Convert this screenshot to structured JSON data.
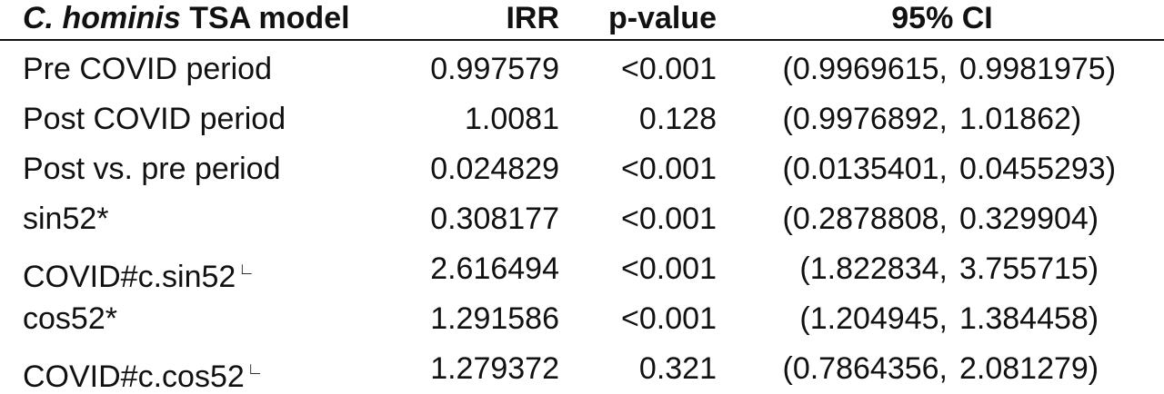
{
  "table": {
    "header": {
      "model_italic": "C. hominis",
      "model_rest": "TSA model",
      "irr": "IRR",
      "p": "p-value",
      "ci": "95% CI"
    },
    "rows": [
      {
        "label": "Pre COVID period",
        "irr": "0.997579",
        "p": "<0.001",
        "ci": [
          "(0.9969615,",
          "0.9981975)"
        ]
      },
      {
        "label": "Post COVID period",
        "irr": "1.0081",
        "p": "0.128",
        "ci": [
          "(0.9976892,",
          "1.01862)"
        ]
      },
      {
        "label": "Post vs. pre period",
        "irr": "0.024829",
        "p": "<0.001",
        "ci": [
          "(0.0135401,",
          "0.0455293)"
        ]
      },
      {
        "label": "sin52*",
        "irr": "0.308177",
        "p": "<0.001",
        "ci": [
          "(0.2878808,",
          "0.329904)"
        ]
      },
      {
        "label": "COVID#c.sin52",
        "sup": "∟",
        "irr": "2.616494",
        "p": "<0.001",
        "ci": [
          "(1.822834,",
          "3.755715)"
        ]
      },
      {
        "label": "cos52*",
        "irr": "1.291586",
        "p": "<0.001",
        "ci": [
          "(1.204945,",
          "1.384458)"
        ]
      },
      {
        "label": "COVID#c.cos52",
        "sup": "∟",
        "irr": "1.279372",
        "p": "0.321",
        "ci": [
          "(0.7864356,",
          "2.081279)"
        ]
      }
    ]
  }
}
